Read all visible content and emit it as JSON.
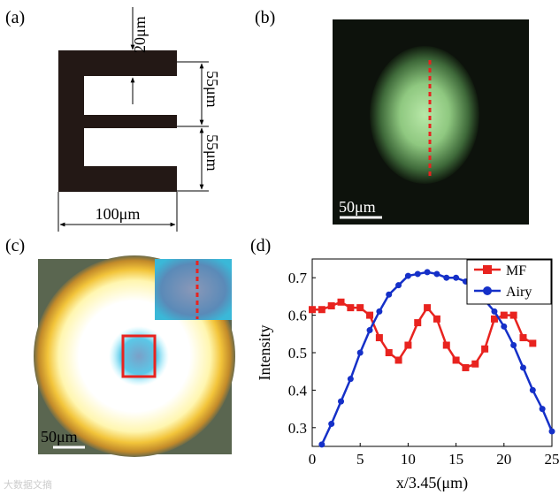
{
  "panel_labels": {
    "a": "(a)",
    "b": "(b)",
    "c": "(c)",
    "d": "(d)"
  },
  "panel_a": {
    "dim_top": "20μm",
    "dim_right_1": "55μm",
    "dim_right_2": "55μm",
    "dim_bottom": "100μm"
  },
  "panel_b": {
    "scalebar": "50μm"
  },
  "panel_c": {
    "scalebar": "50μm"
  },
  "watermark": "大数据文摘",
  "colors": {
    "mf": "#e8231f",
    "airy": "#1530c8"
  },
  "chart_data": {
    "type": "line",
    "xlabel": "x/3.45(μm)",
    "ylabel": "Intensity",
    "xlim": [
      0,
      25
    ],
    "ylim": [
      0.25,
      0.75
    ],
    "xticks": [
      "0",
      "5",
      "10",
      "15",
      "20",
      "25"
    ],
    "yticks": [
      "0.3",
      "0.4",
      "0.5",
      "0.6",
      "0.7"
    ],
    "legend": [
      "MF",
      "Airy"
    ],
    "legend_position": "top-right",
    "series": [
      {
        "name": "MF",
        "marker": "square",
        "x": [
          0,
          1,
          2,
          3,
          4,
          5,
          6,
          7,
          8,
          9,
          10,
          11,
          12,
          13,
          14,
          15,
          16,
          17,
          18,
          19,
          20,
          21,
          22,
          23
        ],
        "y": [
          0.615,
          0.615,
          0.625,
          0.635,
          0.62,
          0.62,
          0.6,
          0.54,
          0.5,
          0.48,
          0.52,
          0.58,
          0.62,
          0.59,
          0.52,
          0.48,
          0.46,
          0.47,
          0.51,
          0.59,
          0.6,
          0.6,
          0.54,
          0.525
        ]
      },
      {
        "name": "Airy",
        "marker": "circle",
        "x": [
          1,
          2,
          3,
          4,
          5,
          6,
          7,
          8,
          9,
          10,
          11,
          12,
          13,
          14,
          15,
          16,
          17,
          18,
          19,
          20,
          21,
          22,
          23,
          24,
          25
        ],
        "y": [
          0.255,
          0.31,
          0.37,
          0.43,
          0.5,
          0.56,
          0.61,
          0.655,
          0.68,
          0.705,
          0.71,
          0.715,
          0.71,
          0.7,
          0.7,
          0.69,
          0.67,
          0.64,
          0.61,
          0.57,
          0.52,
          0.46,
          0.4,
          0.35,
          0.29
        ]
      }
    ]
  }
}
